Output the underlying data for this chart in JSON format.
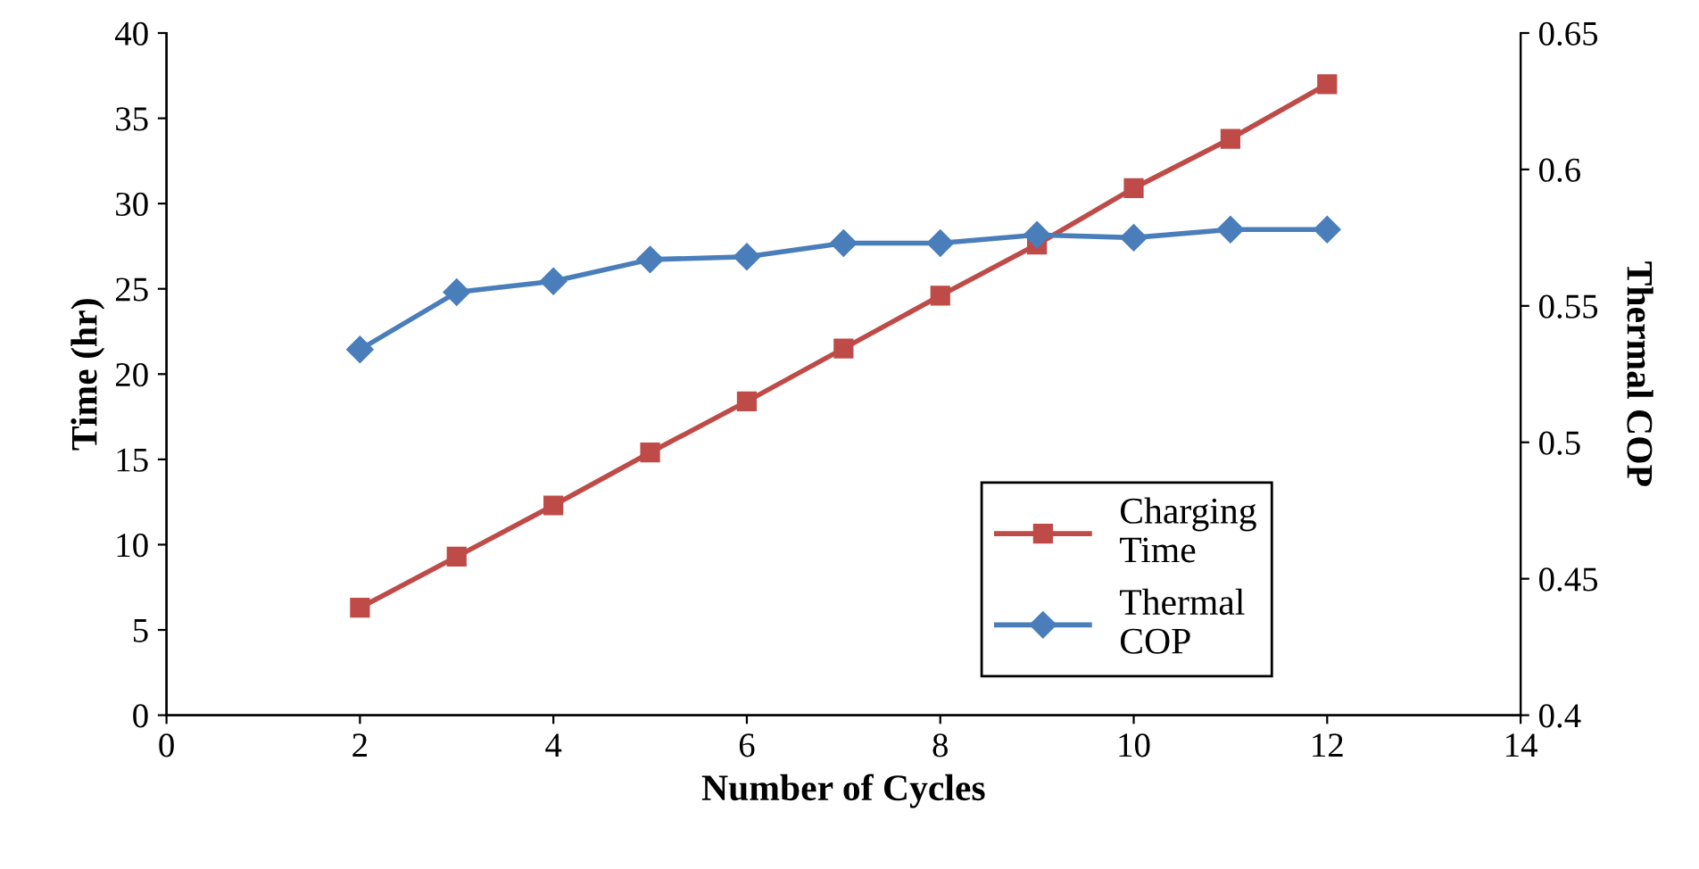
{
  "chart_data": {
    "type": "line",
    "xlabel": "Number of Cycles",
    "ylabel": "Time (hr)",
    "y2label": "Thermal COP",
    "x": [
      2,
      3,
      4,
      5,
      6,
      7,
      8,
      9,
      10,
      11,
      12
    ],
    "series": [
      {
        "name": "Charging Time",
        "color": "#be4b48",
        "marker": "square",
        "values": [
          6.3,
          9.3,
          12.3,
          15.4,
          18.4,
          21.5,
          24.6,
          27.6,
          30.9,
          33.8,
          37.0
        ]
      },
      {
        "name": "Thermal COP",
        "color": "#4a7ebb",
        "marker": "diamond",
        "axis": "y2",
        "values": [
          0.534,
          0.555,
          0.559,
          0.567,
          0.568,
          0.573,
          0.573,
          0.576,
          0.575,
          0.578,
          0.578
        ]
      }
    ],
    "xlim": [
      0,
      14
    ],
    "xticks": [
      0,
      2,
      4,
      6,
      8,
      10,
      12,
      14
    ],
    "ylim": [
      0,
      40
    ],
    "yticks": [
      0,
      5,
      10,
      15,
      20,
      25,
      30,
      35,
      40
    ],
    "y2lim": [
      0.4,
      0.65
    ],
    "y2ticks": [
      {
        "value": 0.4,
        "label": "0.4"
      },
      {
        "value": 0.45,
        "label": "0.45"
      },
      {
        "value": 0.5,
        "label": "0.5"
      },
      {
        "value": 0.55,
        "label": "0.55"
      },
      {
        "value": 0.6,
        "label": "0.6"
      },
      {
        "value": 0.65,
        "label": "0.65"
      }
    ],
    "grid": false,
    "legend": "bottom right",
    "line_style": "solid"
  }
}
